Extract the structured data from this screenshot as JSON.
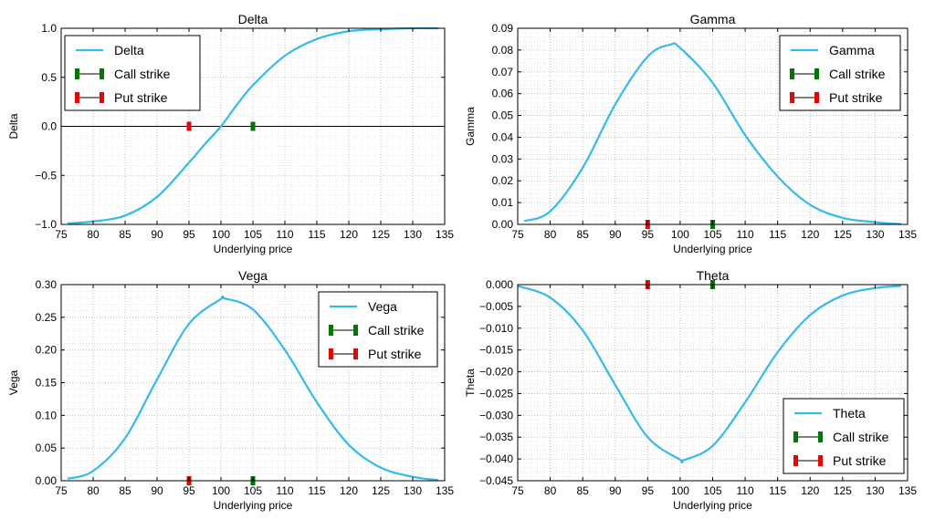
{
  "figure": {
    "colors": {
      "series": "#33bbee",
      "call_strike": "#007700",
      "put_strike": "#ee0000",
      "zero_line": "#000000",
      "grid": "#c8c8c8"
    }
  },
  "chart_data": [
    {
      "type": "line",
      "title": "Delta",
      "xlabel": "Underlying price",
      "ylabel": "Delta",
      "xlim": [
        75,
        135
      ],
      "ylim": [
        -1.0,
        1.0
      ],
      "xticks": [
        "75",
        "80",
        "85",
        "90",
        "95",
        "100",
        "105",
        "110",
        "115",
        "120",
        "125",
        "130",
        "135"
      ],
      "yticks": [
        "−1.0",
        "−0.5",
        "0.0",
        "0.5",
        "1.0"
      ],
      "ytick_values": [
        -1.0,
        -0.5,
        0.0,
        0.5,
        1.0
      ],
      "grid": "on (major and minor, dotted)",
      "legend_position": "top-left",
      "legend": [
        "Delta",
        "Call strike",
        "Put strike"
      ],
      "zero_line": 0.0,
      "series": [
        {
          "name": "Delta",
          "x": [
            76,
            80,
            85,
            90,
            95,
            97.5,
            100,
            102.5,
            105,
            110,
            115,
            120,
            125,
            130,
            134
          ],
          "y": [
            -0.99,
            -0.97,
            -0.91,
            -0.72,
            -0.37,
            -0.18,
            0.0,
            0.22,
            0.42,
            0.72,
            0.89,
            0.97,
            0.99,
            1.0,
            1.0
          ]
        }
      ],
      "markers": [
        {
          "name": "Put strike",
          "x": 95,
          "y": 0.0
        },
        {
          "name": "Call strike",
          "x": 105,
          "y": 0.0
        }
      ]
    },
    {
      "type": "line",
      "title": "Gamma",
      "xlabel": "Underlying price",
      "ylabel": "Gamma",
      "xlim": [
        75,
        135
      ],
      "ylim": [
        0.0,
        0.09
      ],
      "xticks": [
        "75",
        "80",
        "85",
        "90",
        "95",
        "100",
        "105",
        "110",
        "115",
        "120",
        "125",
        "130",
        "135"
      ],
      "yticks": [
        "0.00",
        "0.01",
        "0.02",
        "0.03",
        "0.04",
        "0.05",
        "0.06",
        "0.07",
        "0.08",
        "0.09"
      ],
      "ytick_values": [
        0,
        0.01,
        0.02,
        0.03,
        0.04,
        0.05,
        0.06,
        0.07,
        0.08,
        0.09
      ],
      "grid": "on (major and minor, dotted)",
      "legend_position": "top-right",
      "legend": [
        "Gamma",
        "Call strike",
        "Put strike"
      ],
      "series": [
        {
          "name": "Gamma",
          "x": [
            76,
            80,
            85,
            90,
            95,
            98.5,
            100,
            105,
            110,
            115,
            120,
            125,
            130,
            134
          ],
          "y": [
            0.0015,
            0.006,
            0.026,
            0.055,
            0.077,
            0.0825,
            0.081,
            0.065,
            0.041,
            0.022,
            0.009,
            0.003,
            0.001,
            0.0002
          ]
        }
      ],
      "markers": [
        {
          "name": "Put strike",
          "x": 95,
          "y": 0.0
        },
        {
          "name": "Call strike",
          "x": 105,
          "y": 0.0
        }
      ]
    },
    {
      "type": "line",
      "title": "Vega",
      "xlabel": "Underlying price",
      "ylabel": "Vega",
      "xlim": [
        75,
        135
      ],
      "ylim": [
        0.0,
        0.3
      ],
      "xticks": [
        "75",
        "80",
        "85",
        "90",
        "95",
        "100",
        "105",
        "110",
        "115",
        "120",
        "125",
        "130",
        "135"
      ],
      "yticks": [
        "0.00",
        "0.05",
        "0.10",
        "0.15",
        "0.20",
        "0.25",
        "0.30"
      ],
      "ytick_values": [
        0,
        0.05,
        0.1,
        0.15,
        0.2,
        0.25,
        0.3
      ],
      "grid": "on (major and minor, dotted)",
      "legend_position": "top-right",
      "legend": [
        "Vega",
        "Call strike",
        "Put strike"
      ],
      "series": [
        {
          "name": "Vega",
          "x": [
            76,
            80,
            85,
            90,
            95,
            100,
            100.5,
            105,
            110,
            115,
            120,
            125,
            130,
            134
          ],
          "y": [
            0.003,
            0.015,
            0.065,
            0.155,
            0.24,
            0.278,
            0.279,
            0.262,
            0.2,
            0.12,
            0.055,
            0.02,
            0.006,
            0.001
          ]
        }
      ],
      "markers": [
        {
          "name": "Put strike",
          "x": 95,
          "y": 0.0
        },
        {
          "name": "Call strike",
          "x": 105,
          "y": 0.0
        }
      ]
    },
    {
      "type": "line",
      "title": "Theta",
      "xlabel": "Underlying price",
      "ylabel": "Theta",
      "xlim": [
        75,
        135
      ],
      "ylim": [
        -0.045,
        0.0
      ],
      "xticks": [
        "75",
        "80",
        "85",
        "90",
        "95",
        "100",
        "105",
        "110",
        "115",
        "120",
        "125",
        "130",
        "135"
      ],
      "yticks": [
        "0.000",
        "−0.005",
        "−0.010",
        "−0.015",
        "−0.020",
        "−0.025",
        "−0.030",
        "−0.035",
        "−0.040",
        "−0.045"
      ],
      "ytick_values": [
        0,
        -0.005,
        -0.01,
        -0.015,
        -0.02,
        -0.025,
        -0.03,
        -0.035,
        -0.04,
        -0.045
      ],
      "grid": "on (major and minor, dotted)",
      "legend_position": "bottom-right",
      "legend": [
        "Theta",
        "Call strike",
        "Put strike"
      ],
      "series": [
        {
          "name": "Theta",
          "x": [
            75,
            80,
            85,
            90,
            95,
            100,
            100.5,
            105,
            110,
            115,
            120,
            125,
            130,
            134
          ],
          "y": [
            -0.0003,
            -0.003,
            -0.0105,
            -0.023,
            -0.035,
            -0.0402,
            -0.0403,
            -0.037,
            -0.027,
            -0.0155,
            -0.007,
            -0.0025,
            -0.0008,
            -0.0003
          ]
        }
      ],
      "markers": [
        {
          "name": "Put strike",
          "x": 95,
          "y": 0.0
        },
        {
          "name": "Call strike",
          "x": 105,
          "y": 0.0
        }
      ]
    }
  ]
}
